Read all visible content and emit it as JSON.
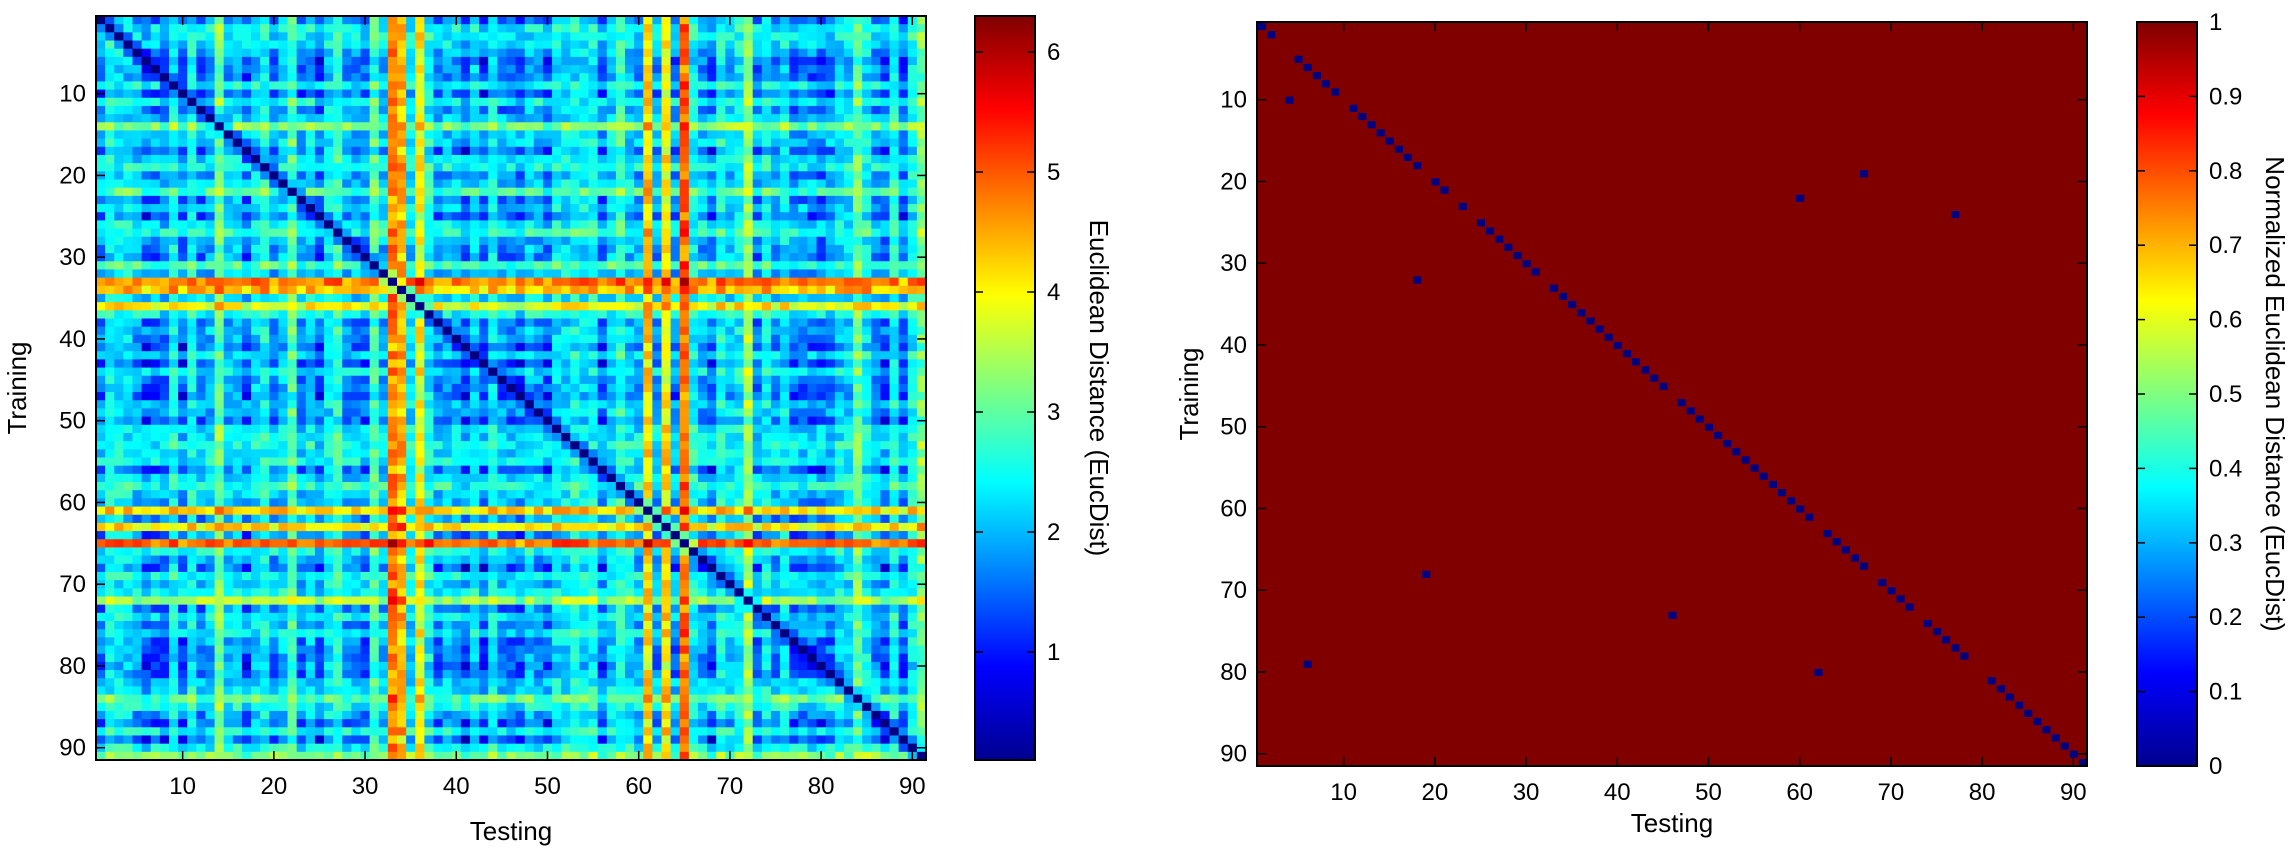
{
  "chart_data": [
    {
      "type": "heatmap",
      "n": 91,
      "xlabel": "Testing",
      "ylabel": "Training",
      "x_ticks": [
        10,
        20,
        30,
        40,
        50,
        60,
        70,
        80,
        90
      ],
      "y_ticks": [
        10,
        20,
        30,
        40,
        50,
        60,
        70,
        80,
        90
      ],
      "x_range": [
        0.5,
        91.5
      ],
      "y_range": [
        0.5,
        91.5
      ],
      "y_direction": "top-to-bottom",
      "colormap": "jet",
      "colorbar": {
        "label": "Euclidean Distance (EucDist)",
        "ticks": [
          1,
          2,
          3,
          4,
          5,
          6
        ],
        "range": [
          0.1,
          6.3
        ]
      },
      "diagonal_value": 0.1,
      "base_value": 2.2,
      "high_bands": [
        {
          "index": 33,
          "value": 5.4
        },
        {
          "index": 34,
          "value": 5.0
        },
        {
          "index": 36,
          "value": 4.5
        },
        {
          "index": 61,
          "value": 4.8
        },
        {
          "index": 63,
          "value": 4.6
        },
        {
          "index": 65,
          "value": 5.6
        }
      ],
      "mid_bands": [
        {
          "index": 3,
          "value": 2.6
        },
        {
          "index": 14,
          "value": 3.6
        },
        {
          "index": 22,
          "value": 3.3
        },
        {
          "index": 27,
          "value": 3.0
        },
        {
          "index": 31,
          "value": 3.2
        },
        {
          "index": 37,
          "value": 2.8
        },
        {
          "index": 44,
          "value": 2.6
        },
        {
          "index": 53,
          "value": 2.8
        },
        {
          "index": 58,
          "value": 3.0
        },
        {
          "index": 72,
          "value": 3.9
        },
        {
          "index": 76,
          "value": 2.6
        },
        {
          "index": 84,
          "value": 3.4
        },
        {
          "index": 91,
          "value": 3.6
        }
      ],
      "low_bands": [
        {
          "index": 6,
          "value": 1.2
        },
        {
          "index": 8,
          "value": 1.4
        },
        {
          "index": 10,
          "value": 1.1
        },
        {
          "index": 17,
          "value": 1.3
        },
        {
          "index": 25,
          "value": 1.2
        },
        {
          "index": 41,
          "value": 1.0
        },
        {
          "index": 43,
          "value": 1.1
        },
        {
          "index": 47,
          "value": 1.2
        },
        {
          "index": 50,
          "value": 1.3
        },
        {
          "index": 56,
          "value": 1.3
        },
        {
          "index": 68,
          "value": 1.2
        },
        {
          "index": 80,
          "value": 1.3
        },
        {
          "index": 87,
          "value": 1.1
        },
        {
          "index": 89,
          "value": 1.0
        }
      ]
    },
    {
      "type": "heatmap",
      "n": 91,
      "xlabel": "Testing",
      "ylabel": "Training",
      "x_ticks": [
        10,
        20,
        30,
        40,
        50,
        60,
        70,
        80,
        90
      ],
      "y_ticks": [
        10,
        20,
        30,
        40,
        50,
        60,
        70,
        80,
        90
      ],
      "x_range": [
        0.5,
        91.5
      ],
      "y_range": [
        0.5,
        91.5
      ],
      "y_direction": "top-to-bottom",
      "colormap": "jet",
      "colorbar": {
        "label": "Normalized Euclidean Distance (EucDist)",
        "ticks": [
          0,
          0.1,
          0.2,
          0.3,
          0.4,
          0.5,
          0.6,
          0.7,
          0.8,
          0.9,
          1
        ],
        "range": [
          0,
          1
        ]
      },
      "background_value": 1,
      "diagonal_value": 0,
      "diagonal_gaps": [
        3,
        4,
        10,
        19,
        22,
        24,
        32,
        46,
        62,
        68,
        73,
        79,
        80
      ],
      "off_diagonal_zeros": [
        {
          "x": 4,
          "y": 10
        },
        {
          "x": 18,
          "y": 32
        },
        {
          "x": 19,
          "y": 68
        },
        {
          "x": 6,
          "y": 79
        },
        {
          "x": 46,
          "y": 73
        },
        {
          "x": 60,
          "y": 22
        },
        {
          "x": 62,
          "y": 80
        },
        {
          "x": 67,
          "y": 19
        },
        {
          "x": 77,
          "y": 24
        }
      ]
    }
  ]
}
